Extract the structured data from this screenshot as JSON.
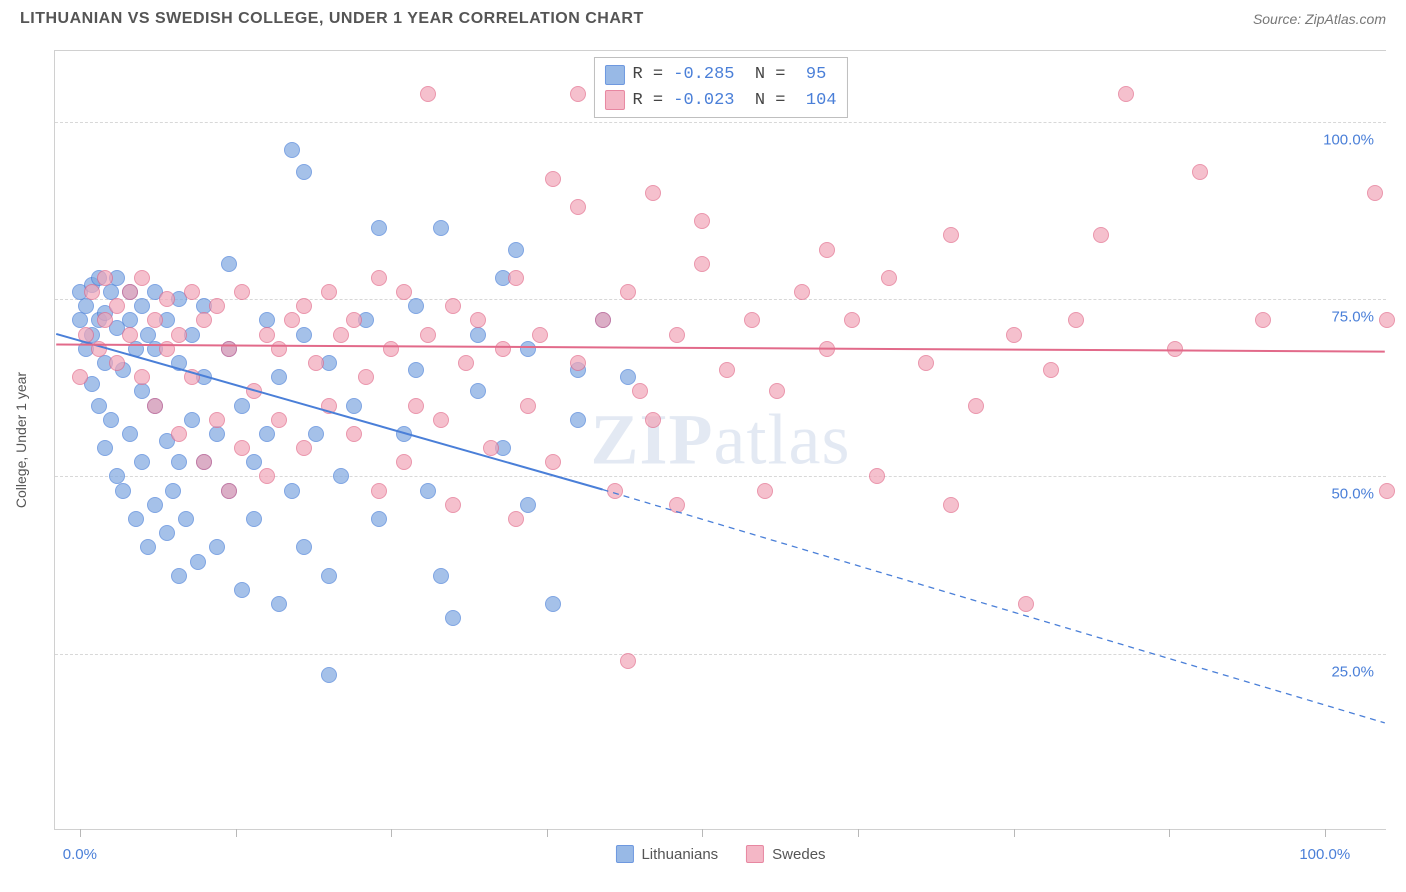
{
  "title": "LITHUANIAN VS SWEDISH COLLEGE, UNDER 1 YEAR CORRELATION CHART",
  "title_color": "#555555",
  "title_fontsize": 16,
  "source_text": "Source: ZipAtlas.com",
  "source_color": "#777777",
  "source_fontsize": 14,
  "watermark": {
    "zip": "ZIP",
    "atlas": "atlas",
    "color": "#6b8bbf",
    "fontsize": 72
  },
  "chart": {
    "type": "scatter",
    "background_color": "#ffffff",
    "border_color": "#d0d0d0",
    "grid_color": "#d8d8d8",
    "xlim": [
      -2,
      105
    ],
    "ylim": [
      0,
      110
    ],
    "x_ticks": [
      0,
      12.5,
      25,
      37.5,
      50,
      62.5,
      75,
      87.5,
      100
    ],
    "x_tick_labels": {
      "0": "0.0%",
      "100": "100.0%"
    },
    "y_gridlines": [
      25,
      50,
      75,
      100
    ],
    "y_tick_labels": {
      "25": "25.0%",
      "50": "50.0%",
      "75": "75.0%",
      "100": "100.0%"
    },
    "axis_label_color": "#4a7fd8",
    "axis_label_fontsize": 15,
    "ylabel": "College, Under 1 year",
    "ylabel_color": "#555555",
    "ylabel_fontsize": 14,
    "marker_radius": 8,
    "marker_fill_opacity": 0.35,
    "series": [
      {
        "name": "Lithuanians",
        "fill": "#7fa8e0",
        "stroke": "#4a7fd8",
        "trend": {
          "x1": -2,
          "y1": 70,
          "x2": 42,
          "y2": 48,
          "dash_x2": 105,
          "dash_y2": 15,
          "width": 2
        },
        "R": "-0.285",
        "N": "95",
        "points": [
          [
            0,
            72
          ],
          [
            0,
            76
          ],
          [
            0.5,
            68
          ],
          [
            0.5,
            74
          ],
          [
            1,
            63
          ],
          [
            1,
            70
          ],
          [
            1,
            77
          ],
          [
            1.5,
            60
          ],
          [
            1.5,
            72
          ],
          [
            1.5,
            78
          ],
          [
            2,
            54
          ],
          [
            2,
            66
          ],
          [
            2,
            73
          ],
          [
            2.5,
            58
          ],
          [
            2.5,
            76
          ],
          [
            3,
            50
          ],
          [
            3,
            71
          ],
          [
            3,
            78
          ],
          [
            3.5,
            48
          ],
          [
            3.5,
            65
          ],
          [
            4,
            56
          ],
          [
            4,
            72
          ],
          [
            4,
            76
          ],
          [
            4.5,
            44
          ],
          [
            4.5,
            68
          ],
          [
            5,
            52
          ],
          [
            5,
            74
          ],
          [
            5,
            62
          ],
          [
            5.5,
            40
          ],
          [
            5.5,
            70
          ],
          [
            6,
            46
          ],
          [
            6,
            60
          ],
          [
            6,
            76
          ],
          [
            6,
            68
          ],
          [
            7,
            42
          ],
          [
            7,
            55
          ],
          [
            7,
            72
          ],
          [
            7.5,
            48
          ],
          [
            8,
            36
          ],
          [
            8,
            52
          ],
          [
            8,
            66
          ],
          [
            8,
            75
          ],
          [
            8.5,
            44
          ],
          [
            9,
            58
          ],
          [
            9,
            70
          ],
          [
            9.5,
            38
          ],
          [
            10,
            52
          ],
          [
            10,
            64
          ],
          [
            10,
            74
          ],
          [
            11,
            40
          ],
          [
            11,
            56
          ],
          [
            12,
            48
          ],
          [
            12,
            68
          ],
          [
            12,
            80
          ],
          [
            13,
            34
          ],
          [
            13,
            60
          ],
          [
            14,
            52
          ],
          [
            14,
            44
          ],
          [
            15,
            56
          ],
          [
            15,
            72
          ],
          [
            16,
            32
          ],
          [
            16,
            64
          ],
          [
            17,
            48
          ],
          [
            17,
            96
          ],
          [
            18,
            70
          ],
          [
            18,
            40
          ],
          [
            18,
            93
          ],
          [
            19,
            56
          ],
          [
            20,
            66
          ],
          [
            20,
            22
          ],
          [
            20,
            36
          ],
          [
            21,
            50
          ],
          [
            22,
            60
          ],
          [
            23,
            72
          ],
          [
            24,
            44
          ],
          [
            24,
            85
          ],
          [
            26,
            56
          ],
          [
            27,
            74
          ],
          [
            27,
            65
          ],
          [
            28,
            48
          ],
          [
            29,
            36
          ],
          [
            29,
            85
          ],
          [
            30,
            30
          ],
          [
            32,
            70
          ],
          [
            32,
            62
          ],
          [
            34,
            54
          ],
          [
            34,
            78
          ],
          [
            35,
            82
          ],
          [
            36,
            46
          ],
          [
            36,
            68
          ],
          [
            38,
            32
          ],
          [
            40,
            58
          ],
          [
            40,
            65
          ],
          [
            42,
            72
          ],
          [
            44,
            64
          ]
        ]
      },
      {
        "name": "Swedes",
        "fill": "#f2a6b8",
        "stroke": "#e26a8a",
        "trend": {
          "x1": -2,
          "y1": 68.5,
          "x2": 105,
          "y2": 67.5,
          "width": 2
        },
        "R": "-0.023",
        "N": "104",
        "points": [
          [
            0,
            64
          ],
          [
            0.5,
            70
          ],
          [
            1,
            76
          ],
          [
            1.5,
            68
          ],
          [
            2,
            72
          ],
          [
            2,
            78
          ],
          [
            3,
            66
          ],
          [
            3,
            74
          ],
          [
            4,
            70
          ],
          [
            4,
            76
          ],
          [
            5,
            64
          ],
          [
            5,
            78
          ],
          [
            6,
            60
          ],
          [
            6,
            72
          ],
          [
            7,
            68
          ],
          [
            7,
            75
          ],
          [
            8,
            56
          ],
          [
            8,
            70
          ],
          [
            9,
            64
          ],
          [
            9,
            76
          ],
          [
            10,
            52
          ],
          [
            10,
            72
          ],
          [
            11,
            58
          ],
          [
            11,
            74
          ],
          [
            12,
            48
          ],
          [
            12,
            68
          ],
          [
            13,
            54
          ],
          [
            13,
            76
          ],
          [
            14,
            62
          ],
          [
            15,
            50
          ],
          [
            15,
            70
          ],
          [
            16,
            58
          ],
          [
            16,
            68
          ],
          [
            17,
            72
          ],
          [
            18,
            54
          ],
          [
            18,
            74
          ],
          [
            19,
            66
          ],
          [
            20,
            60
          ],
          [
            20,
            76
          ],
          [
            21,
            70
          ],
          [
            22,
            56
          ],
          [
            22,
            72
          ],
          [
            23,
            64
          ],
          [
            24,
            48
          ],
          [
            24,
            78
          ],
          [
            25,
            68
          ],
          [
            26,
            52
          ],
          [
            26,
            76
          ],
          [
            27,
            60
          ],
          [
            28,
            70
          ],
          [
            28,
            104
          ],
          [
            29,
            58
          ],
          [
            30,
            74
          ],
          [
            30,
            46
          ],
          [
            31,
            66
          ],
          [
            32,
            72
          ],
          [
            33,
            54
          ],
          [
            34,
            68
          ],
          [
            35,
            44
          ],
          [
            35,
            78
          ],
          [
            36,
            60
          ],
          [
            37,
            70
          ],
          [
            38,
            92
          ],
          [
            38,
            52
          ],
          [
            40,
            66
          ],
          [
            40,
            88
          ],
          [
            40,
            104
          ],
          [
            42,
            72
          ],
          [
            43,
            48
          ],
          [
            44,
            24
          ],
          [
            44,
            76
          ],
          [
            45,
            62
          ],
          [
            46,
            58
          ],
          [
            46,
            90
          ],
          [
            48,
            70
          ],
          [
            48,
            46
          ],
          [
            50,
            80
          ],
          [
            50,
            86
          ],
          [
            52,
            65
          ],
          [
            54,
            72
          ],
          [
            55,
            48
          ],
          [
            56,
            62
          ],
          [
            58,
            76
          ],
          [
            60,
            82
          ],
          [
            60,
            68
          ],
          [
            62,
            72
          ],
          [
            64,
            50
          ],
          [
            65,
            78
          ],
          [
            68,
            66
          ],
          [
            70,
            84
          ],
          [
            70,
            46
          ],
          [
            72,
            60
          ],
          [
            75,
            70
          ],
          [
            76,
            32
          ],
          [
            78,
            65
          ],
          [
            80,
            72
          ],
          [
            82,
            84
          ],
          [
            84,
            104
          ],
          [
            88,
            68
          ],
          [
            90,
            93
          ],
          [
            95,
            72
          ],
          [
            104,
            90
          ],
          [
            105,
            72
          ],
          [
            105,
            48
          ]
        ]
      }
    ],
    "legend_bottom_fontsize": 15,
    "legend_bottom_color": "#555555",
    "stats_box": {
      "label_color": "#444444",
      "value_color": "#4a7fd8",
      "fontsize": 17,
      "swatch_size": 20
    }
  }
}
